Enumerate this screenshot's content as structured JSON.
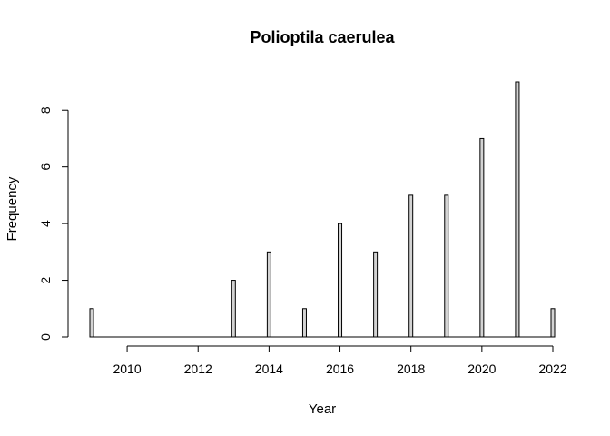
{
  "chart_data": {
    "type": "bar",
    "title": "Polioptila caerulea",
    "xlabel": "Year",
    "ylabel": "Frequency",
    "xlim": [
      2009,
      2022
    ],
    "ylim": [
      0,
      9
    ],
    "x_ticks": [
      2010,
      2012,
      2014,
      2016,
      2018,
      2020,
      2022
    ],
    "y_ticks": [
      0,
      2,
      4,
      6,
      8
    ],
    "bar_fill": "#d3d3d3",
    "bar_stroke": "#000000",
    "grid": false,
    "points": [
      {
        "year": 2009,
        "count": 1
      },
      {
        "year": 2013,
        "count": 2
      },
      {
        "year": 2014,
        "count": 3
      },
      {
        "year": 2015,
        "count": 1
      },
      {
        "year": 2016,
        "count": 4
      },
      {
        "year": 2017,
        "count": 3
      },
      {
        "year": 2018,
        "count": 5
      },
      {
        "year": 2019,
        "count": 5
      },
      {
        "year": 2020,
        "count": 7
      },
      {
        "year": 2021,
        "count": 9
      },
      {
        "year": 2022,
        "count": 1
      }
    ]
  }
}
